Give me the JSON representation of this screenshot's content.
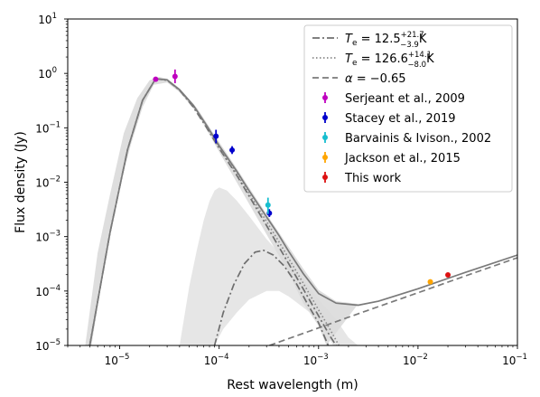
{
  "chart_data": {
    "type": "scatter",
    "xlabel": "Rest wavelength (m)",
    "ylabel": "Flux density (Jy)",
    "xscale": "log",
    "yscale": "log",
    "xlim": [
      3e-06,
      0.1
    ],
    "ylim": [
      1e-05,
      10
    ],
    "x_ticks": [
      {
        "value": 1e-05,
        "base": "10",
        "exp": "−5"
      },
      {
        "value": 0.0001,
        "base": "10",
        "exp": "−4"
      },
      {
        "value": 0.001,
        "base": "10",
        "exp": "−3"
      },
      {
        "value": 0.01,
        "base": "10",
        "exp": "−2"
      },
      {
        "value": 0.1,
        "base": "10",
        "exp": "−1"
      }
    ],
    "y_ticks": [
      {
        "value": 1e-05,
        "base": "10",
        "exp": "−5"
      },
      {
        "value": 0.0001,
        "base": "10",
        "exp": "−4"
      },
      {
        "value": 0.001,
        "base": "10",
        "exp": "−3"
      },
      {
        "value": 0.01,
        "base": "10",
        "exp": "−2"
      },
      {
        "value": 0.1,
        "base": "10",
        "exp": "−1"
      },
      {
        "value": 1,
        "base": "10",
        "exp": "0"
      },
      {
        "value": 10,
        "base": "10",
        "exp": "1"
      }
    ],
    "legend_position": "top-right",
    "grid": false,
    "lines": [
      {
        "key": "cold",
        "label": {
          "pre": "T",
          "sub": "e",
          "mid": " = 12.5",
          "sup": "+21.7",
          "low": "−3.9",
          "post": "K"
        },
        "style": "dashdot",
        "color": "#6e6e6e",
        "points": [
          [
            5e-06,
            1e-05
          ],
          [
            8e-06,
            0.0012
          ],
          [
            1.2e-05,
            0.04
          ],
          [
            1.7e-05,
            0.32
          ],
          [
            2.3e-05,
            0.8
          ],
          [
            3e-05,
            0.75
          ],
          [
            4e-05,
            0.49
          ],
          [
            5.5e-05,
            0.24
          ],
          [
            7.5e-05,
            0.1
          ],
          [
            0.0001,
            0.042
          ],
          [
            0.00015,
            0.0135
          ],
          [
            0.0002,
            0.0056
          ],
          [
            0.0003,
            0.0016
          ],
          [
            0.0004,
            0.00064
          ],
          [
            0.0005,
            0.00032
          ],
          [
            0.0007,
            0.00011
          ],
          [
            0.001,
            3.5e-05
          ],
          [
            0.0013,
            1.5e-05
          ],
          [
            0.0015,
            1e-05
          ]
        ]
      },
      {
        "key": "warm",
        "label": {
          "pre": "T",
          "sub": "e",
          "mid": " = 126.6",
          "sup": "+14.1",
          "low": "−8.0",
          "post": "K"
        },
        "style": "dotted",
        "color": "#8a8a8a",
        "points": [
          [
            5e-06,
            1e-05
          ],
          [
            8e-06,
            0.0012
          ],
          [
            1.2e-05,
            0.04
          ],
          [
            1.7e-05,
            0.32
          ],
          [
            2.3e-05,
            0.8
          ],
          [
            3e-05,
            0.75
          ],
          [
            4e-05,
            0.49
          ],
          [
            5.5e-05,
            0.25
          ],
          [
            7.5e-05,
            0.105
          ],
          [
            0.0001,
            0.044
          ],
          [
            0.00015,
            0.0145
          ],
          [
            0.0002,
            0.0062
          ],
          [
            0.0003,
            0.0019
          ],
          [
            0.0004,
            0.0008
          ],
          [
            0.0005,
            0.0004
          ],
          [
            0.0007,
            0.00014
          ],
          [
            0.001,
            4.5e-05
          ],
          [
            0.0013,
            2e-05
          ],
          [
            0.0016,
            1e-05
          ]
        ]
      },
      {
        "key": "powerlaw",
        "label": {
          "pre": "α",
          "sub": "",
          "mid": " = −0.65",
          "sup": "",
          "low": "",
          "post": ""
        },
        "style": "dashed",
        "color": "#7a7a7a",
        "points": [
          [
            0.00032,
            1e-05
          ],
          [
            0.001,
            2.1e-05
          ],
          [
            0.003,
            4.3e-05
          ],
          [
            0.01,
            9.3e-05
          ],
          [
            0.03,
            0.00019
          ],
          [
            0.1,
            0.00041
          ]
        ]
      },
      {
        "key": "warm_component",
        "label": null,
        "style": "dashdot",
        "color": "#6e6e6e",
        "points": [
          [
            9e-05,
            1e-05
          ],
          [
            0.00011,
            4e-05
          ],
          [
            0.00014,
            0.00013
          ],
          [
            0.00018,
            0.00032
          ],
          [
            0.00023,
            0.00052
          ],
          [
            0.00028,
            0.00056
          ],
          [
            0.00035,
            0.00046
          ],
          [
            0.00045,
            0.00029
          ],
          [
            0.0006,
            0.000135
          ],
          [
            0.0008,
            5.2e-05
          ],
          [
            0.001,
            2.6e-05
          ],
          [
            0.00125,
            1e-05
          ]
        ]
      },
      {
        "key": "total",
        "label": null,
        "style": "solid",
        "color": "#7a7a7a",
        "points": [
          [
            5e-06,
            1e-05
          ],
          [
            8e-06,
            0.0012
          ],
          [
            1.2e-05,
            0.04
          ],
          [
            1.7e-05,
            0.32
          ],
          [
            2.3e-05,
            0.8
          ],
          [
            3e-05,
            0.76
          ],
          [
            4e-05,
            0.5
          ],
          [
            5.5e-05,
            0.26
          ],
          [
            7.5e-05,
            0.11
          ],
          [
            0.0001,
            0.047
          ],
          [
            0.00015,
            0.016
          ],
          [
            0.0002,
            0.007
          ],
          [
            0.0003,
            0.0023
          ],
          [
            0.0004,
            0.00105
          ],
          [
            0.0005,
            0.00054
          ],
          [
            0.0007,
            0.00021
          ],
          [
            0.001,
            9e-05
          ],
          [
            0.0015,
            6e-05
          ],
          [
            0.0025,
            5.5e-05
          ],
          [
            0.004,
            6.5e-05
          ],
          [
            0.01,
            0.00011
          ],
          [
            0.03,
            0.00022
          ],
          [
            0.1,
            0.00046
          ]
        ]
      }
    ],
    "bands": [
      {
        "key": "total_band",
        "color": "#d0d0d0",
        "upper": [
          [
            4.5e-06,
            1e-05
          ],
          [
            6e-06,
            0.0005
          ],
          [
            8e-06,
            0.006
          ],
          [
            1.1e-05,
            0.08
          ],
          [
            1.5e-05,
            0.35
          ],
          [
            2e-05,
            0.75
          ],
          [
            2.5e-05,
            0.86
          ],
          [
            3e-05,
            0.8
          ],
          [
            4e-05,
            0.53
          ],
          [
            6e-05,
            0.23
          ],
          [
            0.0001,
            0.055
          ],
          [
            0.00015,
            0.018
          ],
          [
            0.0002,
            0.008
          ],
          [
            0.0003,
            0.0026
          ],
          [
            0.0005,
            0.00065
          ],
          [
            0.0007,
            0.00026
          ],
          [
            0.001,
            0.000105
          ],
          [
            0.0015,
            6.5e-05
          ],
          [
            0.0025,
            5.8e-05
          ]
        ],
        "lower": [
          [
            5.2e-06,
            1e-05
          ],
          [
            7e-06,
            0.0003
          ],
          [
            9e-06,
            0.004
          ],
          [
            1.3e-05,
            0.05
          ],
          [
            1.7e-05,
            0.24
          ],
          [
            2.2e-05,
            0.62
          ],
          [
            3e-05,
            0.68
          ],
          [
            4e-05,
            0.45
          ],
          [
            6e-05,
            0.19
          ],
          [
            0.0001,
            0.036
          ],
          [
            0.00015,
            0.01
          ],
          [
            0.0002,
            0.004
          ],
          [
            0.0003,
            0.0011
          ],
          [
            0.0005,
            0.00022
          ],
          [
            0.0007,
            6e-05
          ],
          [
            0.001,
            2.3e-05
          ],
          [
            0.0012,
            1e-05
          ]
        ]
      },
      {
        "key": "warm_band",
        "color": "#dcdcdc",
        "upper": [
          [
            4e-05,
            1e-05
          ],
          [
            5e-05,
            0.00012
          ],
          [
            6e-05,
            0.0006
          ],
          [
            7e-05,
            0.002
          ],
          [
            8e-05,
            0.0045
          ],
          [
            9e-05,
            0.007
          ],
          [
            0.0001,
            0.008
          ],
          [
            0.00012,
            0.007
          ],
          [
            0.00015,
            0.0046
          ],
          [
            0.0002,
            0.0024
          ],
          [
            0.0003,
            0.0009
          ],
          [
            0.0004,
            0.0005
          ],
          [
            0.0006,
            0.00024
          ],
          [
            0.0008,
            0.00012
          ],
          [
            0.001,
            7e-05
          ],
          [
            0.0015,
            3e-05
          ],
          [
            0.002,
            1.4e-05
          ],
          [
            0.0025,
            1e-05
          ]
        ],
        "lower": [
          [
            9e-05,
            1e-05
          ],
          [
            0.00011,
            2e-05
          ],
          [
            0.00015,
            4e-05
          ],
          [
            0.0002,
            7e-05
          ],
          [
            0.0003,
            0.0001
          ],
          [
            0.0004,
            0.0001
          ],
          [
            0.0005,
            8e-05
          ],
          [
            0.0007,
            5e-05
          ],
          [
            0.001,
            3e-05
          ],
          [
            0.0014,
            1e-05
          ]
        ]
      }
    ],
    "series": [
      {
        "name": "Serjeant et al., 2009",
        "color": "#bf00bf",
        "points": [
          {
            "x": 2.3e-05,
            "y": 0.78,
            "yerr_lo": 0.04,
            "yerr_hi": 0.05
          },
          {
            "x": 3.6e-05,
            "y": 0.88,
            "yerr_lo": 0.22,
            "yerr_hi": 0.3
          }
        ]
      },
      {
        "name": "Stacey et al., 2019",
        "color": "#0000cc",
        "points": [
          {
            "x": 9.3e-05,
            "y": 0.07,
            "yerr_lo": 0.018,
            "yerr_hi": 0.022
          },
          {
            "x": 0.000135,
            "y": 0.039,
            "yerr_lo": 0.006,
            "yerr_hi": 0.007
          },
          {
            "x": 0.00032,
            "y": 0.0027,
            "yerr_lo": 0.0004,
            "yerr_hi": 0.0005
          }
        ]
      },
      {
        "name": "Barvainis & Ivison., 2002",
        "color": "#17becf",
        "points": [
          {
            "x": 0.00031,
            "y": 0.0038,
            "yerr_lo": 0.0012,
            "yerr_hi": 0.0014
          }
        ]
      },
      {
        "name": "Jackson et al., 2015",
        "color": "#ffa500",
        "points": [
          {
            "x": 0.0133,
            "y": 0.000148,
            "yerr_lo": 8e-06,
            "yerr_hi": 8e-06
          }
        ]
      },
      {
        "name": "This work",
        "color": "#dd1111",
        "points": [
          {
            "x": 0.02,
            "y": 0.000198,
            "yerr_lo": 1e-05,
            "yerr_hi": 1e-05
          }
        ]
      }
    ]
  }
}
